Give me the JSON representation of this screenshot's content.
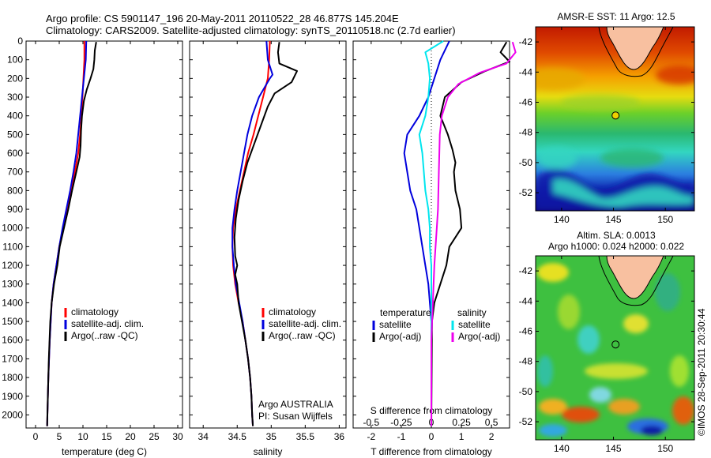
{
  "header": {
    "line1": "Argo profile: CS 5901147_196 20-May-2011 20110522_28 46.877S 145.204E",
    "line2": "Climatology: CARS2009. Satellite-adjusted climatology: synTS_20110518.nc (2.7d earlier)"
  },
  "colors": {
    "climatology": "#ff0000",
    "satellite": "#0000dd",
    "argo": "#000000",
    "sat_salinity": "#00e5ee",
    "argo_salinity": "#ee00ee"
  },
  "depth_ticks": [
    "0",
    "100",
    "200",
    "300",
    "400",
    "500",
    "600",
    "700",
    "800",
    "900",
    "1000",
    "1100",
    "1200",
    "1300",
    "1400",
    "1500",
    "1600",
    "1700",
    "1800",
    "1900",
    "2000"
  ],
  "chart_data": [
    {
      "type": "line",
      "id": "temperature",
      "xlabel": "temperature (deg C)",
      "ylabel": "",
      "xlim": [
        -2,
        31
      ],
      "ylim": [
        2070,
        0
      ],
      "xticks": [
        "0",
        "5",
        "10",
        "15",
        "20",
        "25",
        "30"
      ],
      "xtick_values": [
        0,
        5,
        10,
        15,
        20,
        25,
        30
      ],
      "legend": [
        "climatology",
        "satellite-adj. clim.",
        "Argo(..raw -QC)"
      ],
      "series": [
        {
          "name": "climatology",
          "color": "#ff0000",
          "points": [
            [
              10.3,
              0
            ],
            [
              10.3,
              100
            ],
            [
              10.1,
              200
            ],
            [
              9.9,
              300
            ],
            [
              9.7,
              400
            ],
            [
              9.4,
              500
            ],
            [
              9.0,
              600
            ],
            [
              8.3,
              700
            ],
            [
              7.5,
              800
            ],
            [
              6.6,
              900
            ],
            [
              5.8,
              1000
            ],
            [
              5.0,
              1100
            ],
            [
              4.4,
              1200
            ],
            [
              3.8,
              1300
            ],
            [
              3.4,
              1400
            ],
            [
              3.2,
              1500
            ],
            [
              3.0,
              1600
            ],
            [
              2.85,
              1700
            ],
            [
              2.7,
              1800
            ],
            [
              2.6,
              1900
            ],
            [
              2.5,
              2000
            ],
            [
              2.45,
              2060
            ]
          ]
        },
        {
          "name": "satellite-adj. clim.",
          "color": "#0000dd",
          "points": [
            [
              10.7,
              0
            ],
            [
              10.6,
              100
            ],
            [
              10.2,
              200
            ],
            [
              9.8,
              300
            ],
            [
              9.4,
              400
            ],
            [
              9.0,
              500
            ],
            [
              8.6,
              600
            ],
            [
              8.0,
              700
            ],
            [
              7.3,
              800
            ],
            [
              6.5,
              900
            ],
            [
              5.7,
              1000
            ],
            [
              5.0,
              1100
            ],
            [
              4.4,
              1200
            ],
            [
              3.8,
              1300
            ],
            [
              3.4,
              1400
            ],
            [
              3.2,
              1500
            ],
            [
              3.0,
              1600
            ],
            [
              2.85,
              1700
            ],
            [
              2.7,
              1800
            ],
            [
              2.6,
              1900
            ],
            [
              2.5,
              2000
            ],
            [
              2.45,
              2060
            ]
          ]
        },
        {
          "name": "Argo(..raw -QC)",
          "color": "#000000",
          "points": [
            [
              12.8,
              5
            ],
            [
              12.5,
              50
            ],
            [
              12.4,
              100
            ],
            [
              12.2,
              150
            ],
            [
              11.6,
              200
            ],
            [
              10.8,
              260
            ],
            [
              10.2,
              320
            ],
            [
              9.8,
              400
            ],
            [
              9.6,
              480
            ],
            [
              9.5,
              560
            ],
            [
              9.3,
              620
            ],
            [
              8.6,
              700
            ],
            [
              7.7,
              800
            ],
            [
              6.9,
              900
            ],
            [
              6.0,
              1000
            ],
            [
              5.1,
              1100
            ],
            [
              4.6,
              1200
            ],
            [
              3.9,
              1300
            ],
            [
              3.4,
              1400
            ],
            [
              3.1,
              1500
            ],
            [
              2.95,
              1600
            ],
            [
              2.8,
              1700
            ],
            [
              2.7,
              1800
            ],
            [
              2.6,
              1900
            ],
            [
              2.5,
              2000
            ],
            [
              2.45,
              2060
            ]
          ]
        }
      ]
    },
    {
      "type": "line",
      "id": "salinity",
      "xlabel": "salinity",
      "ylabel": "",
      "xlim": [
        33.8,
        36.1
      ],
      "ylim": [
        2070,
        0
      ],
      "xticks": [
        "34",
        "34.5",
        "35",
        "35.5",
        "36"
      ],
      "xtick_values": [
        34,
        34.5,
        35,
        35.5,
        36
      ],
      "legend": [
        "climatology",
        "satellite-adj. clim.",
        "Argo(..raw -QC)"
      ],
      "series": [
        {
          "name": "climatology",
          "color": "#ff0000",
          "points": [
            [
              34.98,
              0
            ],
            [
              34.97,
              100
            ],
            [
              34.95,
              200
            ],
            [
              34.88,
              300
            ],
            [
              34.81,
              400
            ],
            [
              34.74,
              500
            ],
            [
              34.66,
              600
            ],
            [
              34.6,
              700
            ],
            [
              34.54,
              800
            ],
            [
              34.48,
              900
            ],
            [
              34.44,
              1000
            ],
            [
              34.43,
              1100
            ],
            [
              34.44,
              1200
            ],
            [
              34.47,
              1300
            ],
            [
              34.52,
              1400
            ],
            [
              34.58,
              1500
            ],
            [
              34.62,
              1600
            ],
            [
              34.66,
              1700
            ],
            [
              34.69,
              1800
            ],
            [
              34.71,
              1900
            ],
            [
              34.72,
              2000
            ],
            [
              34.73,
              2060
            ]
          ]
        },
        {
          "name": "satellite-adj. clim.",
          "color": "#0000dd",
          "points": [
            [
              34.93,
              0
            ],
            [
              34.95,
              100
            ],
            [
              35.02,
              180
            ],
            [
              34.98,
              200
            ],
            [
              34.82,
              300
            ],
            [
              34.72,
              400
            ],
            [
              34.65,
              500
            ],
            [
              34.6,
              600
            ],
            [
              34.55,
              700
            ],
            [
              34.5,
              800
            ],
            [
              34.46,
              900
            ],
            [
              34.43,
              1000
            ],
            [
              34.43,
              1100
            ],
            [
              34.45,
              1200
            ],
            [
              34.48,
              1300
            ],
            [
              34.53,
              1400
            ],
            [
              34.58,
              1500
            ],
            [
              34.62,
              1600
            ],
            [
              34.66,
              1700
            ],
            [
              34.69,
              1800
            ],
            [
              34.71,
              1900
            ],
            [
              34.72,
              2000
            ],
            [
              34.73,
              2060
            ]
          ]
        },
        {
          "name": "Argo(..raw -QC)",
          "color": "#000000",
          "points": [
            [
              35.12,
              5
            ],
            [
              35.1,
              60
            ],
            [
              35.12,
              120
            ],
            [
              35.38,
              160
            ],
            [
              35.3,
              220
            ],
            [
              35.05,
              280
            ],
            [
              34.95,
              350
            ],
            [
              34.85,
              450
            ],
            [
              34.75,
              550
            ],
            [
              34.65,
              650
            ],
            [
              34.58,
              750
            ],
            [
              34.52,
              850
            ],
            [
              34.48,
              950
            ],
            [
              34.46,
              1050
            ],
            [
              34.47,
              1150
            ],
            [
              34.5,
              1200
            ],
            [
              34.47,
              1250
            ],
            [
              34.5,
              1300
            ],
            [
              34.52,
              1400
            ],
            [
              34.57,
              1500
            ],
            [
              34.62,
              1600
            ],
            [
              34.66,
              1700
            ],
            [
              34.69,
              1800
            ],
            [
              34.71,
              1900
            ],
            [
              34.72,
              2000
            ],
            [
              34.73,
              2060
            ]
          ]
        }
      ],
      "annotations": [
        "Argo AUSTRALIA",
        "PI: Susan Wijffels"
      ]
    },
    {
      "type": "line",
      "id": "difference",
      "xlabel": "T difference from climatology",
      "x2label": "S difference from climatology",
      "ylabel": "",
      "xlim": [
        -2.6,
        2.6
      ],
      "ylim": [
        2070,
        0
      ],
      "xticks": [
        "-2",
        "-1",
        "0",
        "1",
        "2"
      ],
      "xtick_values": [
        -2,
        -1,
        0,
        1,
        2
      ],
      "x2ticks": [
        "-0.5",
        "-0.25",
        "0",
        "0.25",
        "0.5"
      ],
      "x2tick_values": [
        -0.5,
        -0.25,
        0,
        0.25,
        0.5
      ],
      "legend_temperature_title": "temperature",
      "legend_salinity_title": "salinity",
      "legend": [
        "satellite",
        "Argo(-adj)",
        "satellite",
        "Argo(-adj)"
      ],
      "series": [
        {
          "name": "satellite",
          "quantity": "temperature",
          "color": "#0000dd",
          "points": [
            [
              0.6,
              0
            ],
            [
              0.3,
              100
            ],
            [
              0.1,
              200
            ],
            [
              -0.1,
              300
            ],
            [
              -0.4,
              400
            ],
            [
              -0.8,
              500
            ],
            [
              -0.9,
              600
            ],
            [
              -0.8,
              700
            ],
            [
              -0.7,
              800
            ],
            [
              -0.5,
              900
            ],
            [
              -0.4,
              1000
            ],
            [
              -0.3,
              1100
            ],
            [
              -0.2,
              1200
            ],
            [
              -0.1,
              1300
            ],
            [
              -0.05,
              1400
            ],
            [
              0,
              1500
            ],
            [
              0,
              2060
            ]
          ]
        },
        {
          "name": "Argo(-adj)",
          "quantity": "temperature",
          "color": "#000000",
          "points": [
            [
              2.5,
              5
            ],
            [
              2.3,
              60
            ],
            [
              2.6,
              110
            ],
            [
              1.8,
              160
            ],
            [
              1.0,
              220
            ],
            [
              0.45,
              300
            ],
            [
              0.3,
              400
            ],
            [
              0.55,
              500
            ],
            [
              0.7,
              580
            ],
            [
              0.8,
              650
            ],
            [
              0.75,
              700
            ],
            [
              0.8,
              800
            ],
            [
              0.95,
              900
            ],
            [
              1.0,
              1000
            ],
            [
              0.6,
              1100
            ],
            [
              0.5,
              1200
            ],
            [
              0.3,
              1300
            ],
            [
              0.1,
              1400
            ],
            [
              0.02,
              1500
            ],
            [
              0,
              2060
            ]
          ]
        },
        {
          "name": "satellite",
          "quantity": "salinity",
          "color": "#00e5ee",
          "points": [
            [
              0.4,
              0
            ],
            [
              -0.2,
              60
            ],
            [
              -0.1,
              120
            ],
            [
              -0.05,
              200
            ],
            [
              -0.1,
              300
            ],
            [
              -0.2,
              400
            ],
            [
              -0.4,
              500
            ],
            [
              -0.3,
              600
            ],
            [
              -0.25,
              700
            ],
            [
              -0.2,
              800
            ],
            [
              -0.1,
              900
            ],
            [
              -0.05,
              1000
            ],
            [
              -0.05,
              1100
            ],
            [
              0,
              1200
            ],
            [
              0,
              1300
            ],
            [
              0,
              2060
            ]
          ]
        },
        {
          "name": "Argo(-adj)",
          "quantity": "salinity",
          "color": "#ee00ee",
          "points": [
            [
              2.7,
              5
            ],
            [
              2.8,
              60
            ],
            [
              2.5,
              120
            ],
            [
              1.6,
              170
            ],
            [
              0.9,
              230
            ],
            [
              0.55,
              300
            ],
            [
              0.35,
              400
            ],
            [
              0.28,
              500
            ],
            [
              0.25,
              700
            ],
            [
              0.22,
              900
            ],
            [
              0.18,
              1000
            ],
            [
              0.1,
              1200
            ],
            [
              0.05,
              1400
            ],
            [
              0,
              1600
            ],
            [
              0,
              2060
            ]
          ]
        }
      ]
    },
    {
      "type": "heatmap",
      "id": "sst_map",
      "title": "AMSR-E SST: 11  Argo: 12.5",
      "xlim": [
        137.5,
        152.8
      ],
      "ylim": [
        -53.2,
        -41.0
      ],
      "xticks": [
        "140",
        "145",
        "150"
      ],
      "xtick_values": [
        140,
        145,
        150
      ],
      "yticks": [
        "-42",
        "-44",
        "-46",
        "-48",
        "-50",
        "-52"
      ],
      "ytick_values": [
        -42,
        -44,
        -46,
        -48,
        -50,
        -52
      ],
      "profile_location": [
        145.204,
        -46.877
      ]
    },
    {
      "type": "heatmap",
      "id": "sla_map",
      "title": "Altim. SLA: 0.0013",
      "subtitle": "Argo h1000: 0.024 h2000: 0.022",
      "xlim": [
        137.5,
        152.8
      ],
      "ylim": [
        -53.2,
        -41.0
      ],
      "xticks": [
        "140",
        "145",
        "150"
      ],
      "xtick_values": [
        140,
        145,
        150
      ],
      "yticks": [
        "-42",
        "-44",
        "-46",
        "-48",
        "-50",
        "-52"
      ],
      "ytick_values": [
        -42,
        -44,
        -46,
        -48,
        -50,
        -52
      ],
      "profile_location": [
        145.204,
        -46.877
      ]
    }
  ],
  "footer": {
    "credit": "©IMOS 28-Sep-2011 20:30:44"
  }
}
